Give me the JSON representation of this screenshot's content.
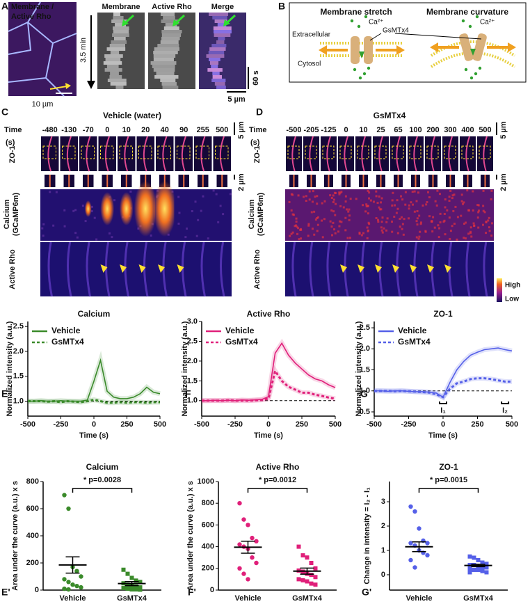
{
  "panel_a": {
    "label": "A",
    "image_title_1": "Membrane /",
    "image_title_2": "Active Rho",
    "scale": "10 µm",
    "time_arrow": "3.5 min",
    "kymo_titles": [
      "Membrane",
      "Active Rho",
      "Merge"
    ],
    "kymo_time_scale": "60 s",
    "kymo_scale": "5 µm"
  },
  "panel_b": {
    "label": "B",
    "titles": [
      "Membrane stretch",
      "Membrane curvature"
    ],
    "extracellular": "Extracellular",
    "cytosol": "Cytosol",
    "drug": "GsMTx4",
    "ion": [
      "Ca²⁺",
      "Ca²⁺"
    ]
  },
  "panel_c": {
    "label": "C",
    "title": "Vehicle (water)",
    "time_label": "Time",
    "time_unit": "(s)",
    "times": [
      -480,
      -130,
      -70,
      0,
      10,
      20,
      40,
      90,
      255,
      500
    ],
    "rows": [
      "ZO-1",
      "Calcium",
      "(GCaMP6m)",
      "Active Rho"
    ],
    "scales": [
      "5 µm",
      "2 µm"
    ]
  },
  "panel_d": {
    "label": "D",
    "title": "GsMTx4",
    "time_label": "Time",
    "time_unit": "(s)",
    "times": [
      -500,
      -205,
      -125,
      0,
      10,
      25,
      65,
      100,
      200,
      300,
      400,
      500
    ],
    "rows": [
      "ZO-1",
      "Calcium",
      "(GCaMP6m)",
      "Active Rho"
    ],
    "scales": [
      "5 µm",
      "2 µm"
    ],
    "colorbar": [
      "High",
      "Low"
    ]
  },
  "chart_data": [
    {
      "type": "line",
      "panel": "E",
      "title": "Calcium",
      "x_label": "Time (s)",
      "y_label": "Normalized intensity (a.u.)",
      "x": [
        -500,
        -450,
        -400,
        -350,
        -300,
        -250,
        -200,
        -150,
        -100,
        -50,
        0,
        50,
        100,
        150,
        200,
        250,
        300,
        350,
        400,
        450,
        500
      ],
      "series": [
        {
          "name": "Vehicle",
          "color": "#3a8a2a",
          "dashed": false,
          "values": [
            1.0,
            1.0,
            1.01,
            1.0,
            1.0,
            1.01,
            1.0,
            1.0,
            1.0,
            1.02,
            1.4,
            1.82,
            1.2,
            1.08,
            1.05,
            1.05,
            1.08,
            1.15,
            1.28,
            1.18,
            1.15
          ]
        },
        {
          "name": "GsMTx4",
          "color": "#3a8a2a",
          "dashed": true,
          "values": [
            1.0,
            1.0,
            1.0,
            0.99,
            1.0,
            0.98,
            1.0,
            0.99,
            0.98,
            1.0,
            1.03,
            1.0,
            0.97,
            0.97,
            0.98,
            0.97,
            0.98,
            0.98,
            0.97,
            0.98,
            0.98
          ]
        }
      ],
      "xlim": [
        -500,
        500
      ],
      "xticks": [
        -500,
        -250,
        0,
        250,
        500
      ],
      "ylim": [
        0.7,
        2.6
      ],
      "yticks": [
        {
          "value": 1,
          "label": "1.0"
        },
        {
          "value": 1.5,
          "label": "1.5"
        },
        {
          "value": 2,
          "label": "2.0"
        },
        {
          "value": 2.5,
          "label": "2.5"
        }
      ],
      "reference_line": 1
    },
    {
      "type": "line",
      "panel": "F",
      "title": "Active Rho",
      "x_label": "Time (s)",
      "y_label": "Normalized intensity (a.u.)",
      "x": [
        -500,
        -450,
        -400,
        -350,
        -300,
        -250,
        -200,
        -150,
        -100,
        -50,
        0,
        50,
        100,
        150,
        200,
        250,
        300,
        350,
        400,
        450,
        500
      ],
      "series": [
        {
          "name": "Vehicle",
          "color": "#e0207a",
          "dashed": false,
          "values": [
            1.0,
            1.0,
            1.01,
            1.0,
            1.01,
            1.0,
            1.02,
            1.01,
            1.02,
            1.03,
            1.1,
            2.2,
            2.45,
            2.15,
            1.95,
            1.8,
            1.65,
            1.55,
            1.5,
            1.4,
            1.33
          ]
        },
        {
          "name": "GsMTx4",
          "color": "#e0207a",
          "dashed": true,
          "values": [
            1.0,
            1.0,
            1.0,
            1.0,
            1.01,
            1.0,
            1.0,
            1.0,
            1.01,
            1.02,
            1.05,
            1.75,
            1.5,
            1.35,
            1.28,
            1.2,
            1.2,
            1.15,
            1.12,
            1.08,
            1.05
          ]
        }
      ],
      "xlim": [
        -500,
        500
      ],
      "xticks": [
        -500,
        -250,
        0,
        250,
        500
      ],
      "ylim": [
        0.61,
        3.0
      ],
      "yticks": [
        {
          "value": 1,
          "label": "1.0"
        },
        {
          "value": 1.5,
          "label": "1.5"
        },
        {
          "value": 2,
          "label": "2.0"
        },
        {
          "value": 2.5,
          "label": "2.5"
        },
        {
          "value": 3,
          "label": "3.0"
        }
      ],
      "reference_line": 1
    },
    {
      "type": "line",
      "panel": "G",
      "title": "ZO-1",
      "x_label": "Time (s)",
      "y_label": "Normalized intensity (a.u.)",
      "x": [
        -500,
        -450,
        -400,
        -350,
        -300,
        -250,
        -200,
        -150,
        -100,
        -50,
        0,
        50,
        100,
        150,
        200,
        250,
        300,
        350,
        400,
        450,
        500
      ],
      "series": [
        {
          "name": "Vehicle",
          "color": "#5560e8",
          "dashed": false,
          "values": [
            1.0,
            1.0,
            0.99,
            1.0,
            1.0,
            0.99,
            0.98,
            0.98,
            0.97,
            0.95,
            0.85,
            1.2,
            1.5,
            1.7,
            1.85,
            1.92,
            1.98,
            2.0,
            2.02,
            1.98,
            1.95
          ]
        },
        {
          "name": "GsMTx4",
          "color": "#5560e8",
          "dashed": true,
          "values": [
            1.0,
            1.0,
            1.0,
            0.99,
            1.0,
            0.99,
            0.98,
            0.97,
            0.96,
            0.92,
            0.85,
            1.05,
            1.18,
            1.22,
            1.28,
            1.3,
            1.3,
            1.28,
            1.25,
            1.22,
            1.22
          ]
        }
      ],
      "xlim": [
        -500,
        500
      ],
      "xticks": [
        -500,
        -250,
        0,
        250,
        500
      ],
      "ylim": [
        0.4,
        2.65
      ],
      "yticks": [
        0.5,
        {
          "value": 1,
          "label": "1.0"
        },
        1.5,
        {
          "value": 2,
          "label": "2.0"
        },
        2.5
      ],
      "reference_line": 1,
      "annotations": [
        {
          "text": "I₁",
          "x": 0
        },
        {
          "text": "I₂",
          "x": 450
        }
      ]
    },
    {
      "type": "strip",
      "panel": "E'",
      "title": "Calcium",
      "y_label": "Area under the curve (a.u.) x s",
      "annotation": "* p=0.0028",
      "color": "#3a8a2a",
      "categories": [
        "Vehicle",
        "GsMTx4"
      ],
      "points": [
        [
          700,
          600,
          170,
          140,
          100,
          80,
          60,
          40,
          30,
          20,
          10,
          5
        ],
        [
          150,
          120,
          90,
          70,
          60,
          50,
          40,
          30,
          25,
          20,
          15,
          10,
          5,
          5,
          3
        ]
      ],
      "mean": [
        185,
        48
      ],
      "sem": [
        60,
        15
      ],
      "ylim": [
        0,
        800
      ],
      "yticks": [
        0,
        200,
        400,
        600,
        800
      ]
    },
    {
      "type": "strip",
      "panel": "F'",
      "title": "Active Rho",
      "y_label": "Area under the curve (a.u.) x s",
      "annotation": "* p=0.0012",
      "color": "#e0207a",
      "categories": [
        "Vehicle",
        "GsMTx4"
      ],
      "points": [
        [
          800,
          650,
          600,
          480,
          450,
          420,
          400,
          380,
          300,
          250,
          200,
          150,
          100
        ],
        [
          400,
          320,
          300,
          250,
          200,
          180,
          170,
          150,
          140,
          120,
          100,
          90,
          80,
          60,
          50
        ]
      ],
      "mean": [
        395,
        175
      ],
      "sem": [
        55,
        28
      ],
      "ylim": [
        0,
        1000
      ],
      "yticks": [
        0,
        200,
        400,
        600,
        800,
        1000
      ]
    },
    {
      "type": "strip",
      "panel": "G'",
      "title": "ZO-1",
      "y_label": "Change in intensity = I₂ - I₁",
      "annotation": "* p=0.0015",
      "color": "#5560e8",
      "categories": [
        "Vehicle",
        "GsMTx4"
      ],
      "points": [
        [
          2.8,
          2.6,
          1.9,
          1.4,
          1.3,
          1.3,
          1.2,
          1.0,
          0.9,
          0.8,
          0.6,
          0.3
        ],
        [
          0.75,
          0.7,
          0.6,
          0.5,
          0.45,
          0.4,
          0.4,
          0.35,
          0.3,
          0.3,
          0.25,
          0.2,
          0.2,
          0.15,
          0.1,
          0.1
        ]
      ],
      "mean": [
        1.15,
        0.38
      ],
      "sem": [
        0.2,
        0.05
      ],
      "ylim": [
        -0.63,
        3.83
      ],
      "yticks": [
        0,
        1,
        2,
        3
      ]
    }
  ]
}
